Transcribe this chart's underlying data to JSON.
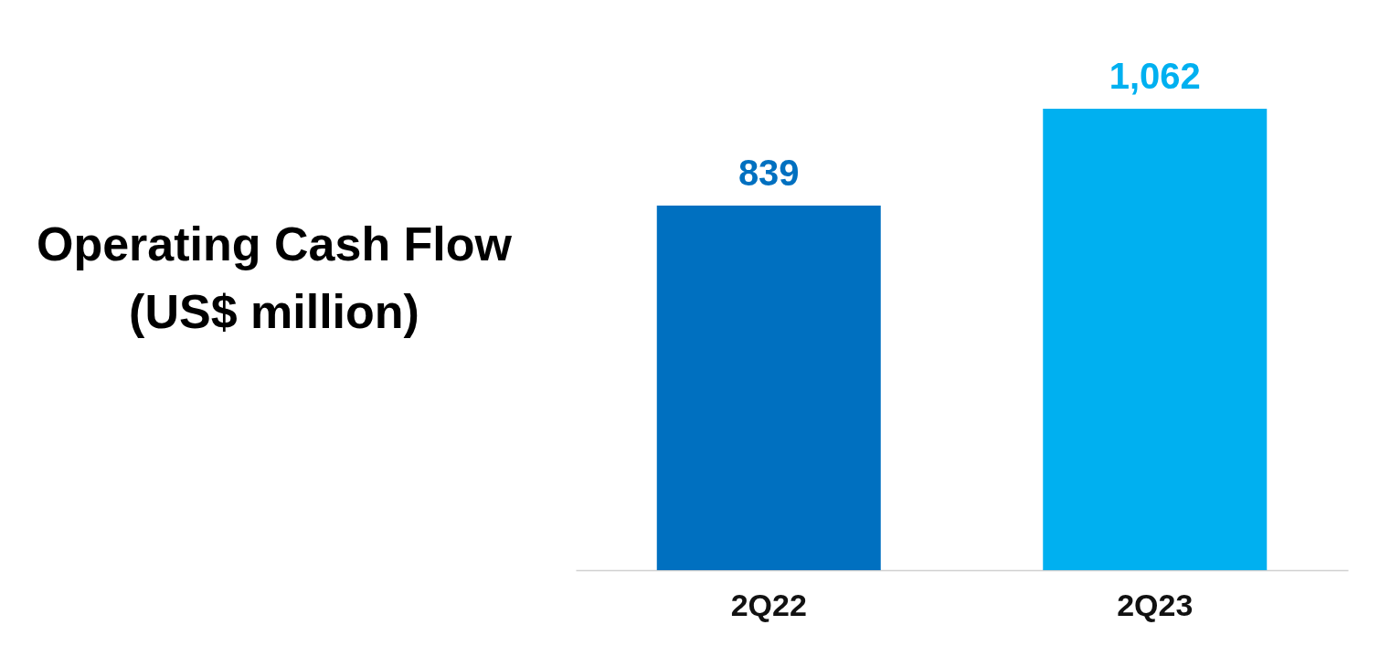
{
  "chart_data": {
    "type": "bar",
    "title": "Operating Cash Flow\n(US$ million)",
    "categories": [
      "2Q22",
      "2Q23"
    ],
    "values": [
      839,
      1062
    ],
    "value_labels": [
      "839",
      "1,062"
    ],
    "colors": [
      "#0070c0",
      "#00b0f0"
    ],
    "grid": false
  }
}
